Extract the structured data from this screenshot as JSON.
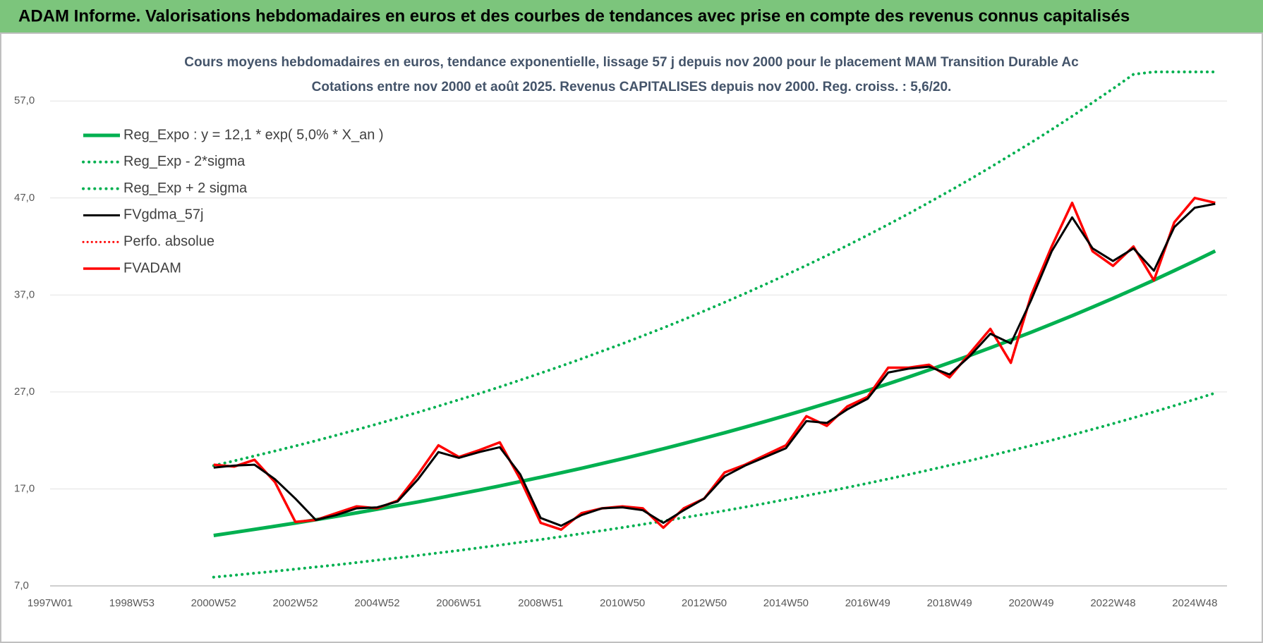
{
  "header": {
    "title": "ADAM Informe. Valorisations hebdomadaires en euros et des courbes de tendances avec prise en compte des revenus connus capitalisés"
  },
  "chart_data": {
    "type": "line",
    "title": "Cours moyens hebdomadaires en euros, tendance exponentielle, lissage 57 j depuis nov 2000  pour le placement MAM Transition Durable Ac",
    "subtitle": "Cotations entre nov 2000 et août 2025.  Revenus CAPITALISES depuis nov 2000. Reg. croiss. : 5,6/20.",
    "categories": [
      "1997W01",
      null,
      null,
      null,
      "1998W53",
      null,
      null,
      null,
      "2000W52",
      null,
      null,
      null,
      "2002W52",
      null,
      null,
      null,
      "2004W52",
      null,
      null,
      null,
      "2006W51",
      null,
      null,
      null,
      "2008W51",
      null,
      null,
      null,
      "2010W50",
      null,
      null,
      null,
      "2012W50",
      null,
      null,
      null,
      "2014W50",
      null,
      null,
      null,
      "2016W49",
      null,
      null,
      null,
      "2018W49",
      null,
      null,
      null,
      "2020W49",
      null,
      null,
      null,
      "2022W48",
      null,
      null,
      null,
      "2024W48",
      null
    ],
    "ylim": [
      7,
      60
    ],
    "yticks": [
      {
        "value": 7,
        "label": "7,0"
      },
      {
        "value": 17,
        "label": "17,0"
      },
      {
        "value": 27,
        "label": "27,0"
      },
      {
        "value": 37,
        "label": "37,0"
      },
      {
        "value": 47,
        "label": "47,0"
      },
      {
        "value": 57,
        "label": "57,0"
      }
    ],
    "grid": true,
    "legend": "upper left",
    "series": [
      {
        "name": "Reg_Expo : y = 12,1 * exp( 5,0% *  X_an )",
        "color": "#00b050",
        "style": "solid",
        "width": 5,
        "values": [
          null,
          null,
          null,
          null,
          null,
          null,
          null,
          null,
          12.2,
          12.51,
          12.83,
          13.15,
          13.48,
          13.82,
          14.17,
          14.53,
          14.9,
          15.28,
          15.66,
          16.06,
          16.47,
          16.88,
          17.31,
          17.75,
          18.2,
          18.66,
          19.13,
          19.62,
          20.11,
          20.62,
          21.14,
          21.68,
          22.23,
          22.79,
          23.37,
          23.96,
          24.57,
          25.19,
          25.83,
          26.48,
          27.15,
          27.84,
          28.54,
          29.27,
          30.01,
          30.77,
          31.55,
          32.35,
          33.16,
          34.0,
          34.86,
          35.75,
          36.65,
          37.58,
          38.53,
          39.51,
          40.51,
          41.53
        ]
      },
      {
        "name": "Reg_Exp - 2*sigma",
        "color": "#00b050",
        "style": "dotted",
        "width": 4,
        "values": [
          null,
          null,
          null,
          null,
          null,
          null,
          null,
          null,
          7.9,
          8.1,
          8.31,
          8.51,
          8.73,
          8.95,
          9.17,
          9.41,
          9.65,
          9.89,
          10.14,
          10.4,
          10.66,
          10.93,
          11.21,
          11.49,
          11.78,
          12.08,
          12.39,
          12.7,
          13.02,
          13.35,
          13.69,
          14.04,
          14.39,
          14.76,
          15.13,
          15.51,
          15.91,
          16.31,
          16.72,
          17.15,
          17.58,
          18.03,
          18.48,
          18.95,
          19.43,
          19.92,
          20.43,
          20.95,
          21.47,
          22.02,
          22.57,
          23.15,
          23.73,
          24.33,
          24.95,
          25.58,
          26.23,
          26.89
        ]
      },
      {
        "name": "Reg_Exp + 2 sigma",
        "color": "#00b050",
        "style": "dotted",
        "width": 4,
        "values": [
          null,
          null,
          null,
          null,
          null,
          null,
          null,
          null,
          19.4,
          19.89,
          20.4,
          20.91,
          21.43,
          21.97,
          22.53,
          23.1,
          23.69,
          24.3,
          24.9,
          25.54,
          26.19,
          26.84,
          27.52,
          28.22,
          28.94,
          29.67,
          30.42,
          31.2,
          31.97,
          32.79,
          33.61,
          34.47,
          35.35,
          36.24,
          37.16,
          38.1,
          39.07,
          40.05,
          41.07,
          42.1,
          43.17,
          44.27,
          45.38,
          46.54,
          47.72,
          48.92,
          50.16,
          51.44,
          52.72,
          54.06,
          55.43,
          56.84,
          58.27,
          59.75,
          60,
          60,
          60,
          60
        ]
      },
      {
        "name": "FVgdma_57j",
        "color": "#000000",
        "style": "solid",
        "width": 3,
        "values": [
          null,
          null,
          null,
          null,
          null,
          null,
          null,
          null,
          19.2,
          19.4,
          19.5,
          18.0,
          16.0,
          13.8,
          14.3,
          15.0,
          15.1,
          15.7,
          18.0,
          20.8,
          20.2,
          20.8,
          21.3,
          18.5,
          14.0,
          13.2,
          14.3,
          15.0,
          15.1,
          14.8,
          13.5,
          14.8,
          16.0,
          18.3,
          19.4,
          20.3,
          21.2,
          24.0,
          23.8,
          25.2,
          26.3,
          29.0,
          29.4,
          29.6,
          28.8,
          30.7,
          33.0,
          32.0,
          36.5,
          41.5,
          45.0,
          41.8,
          40.5,
          41.8,
          39.5,
          44.0,
          46.0,
          46.4
        ]
      },
      {
        "name": "Perfo. absolue",
        "color": "#ff0000",
        "style": "dotted",
        "width": 3,
        "values": [
          null,
          null,
          null,
          null,
          null,
          null,
          null,
          null,
          null,
          null,
          null,
          null,
          null,
          null,
          null,
          null,
          null,
          null,
          null,
          null,
          null,
          null,
          null,
          null,
          null,
          null,
          null,
          null,
          null,
          null,
          null,
          null,
          null,
          null,
          null,
          null,
          null,
          null,
          null,
          null,
          null,
          null,
          null,
          null,
          null,
          null,
          null,
          null,
          null,
          null,
          null,
          null,
          null,
          null,
          null,
          null,
          null,
          null
        ]
      },
      {
        "name": "FVADAM",
        "color": "#ff0000",
        "style": "solid",
        "width": 3.5,
        "values": [
          null,
          null,
          null,
          null,
          null,
          null,
          null,
          null,
          19.5,
          19.3,
          20.0,
          17.7,
          13.6,
          13.8,
          14.5,
          15.2,
          15.0,
          15.8,
          18.5,
          21.5,
          20.3,
          21.0,
          21.8,
          18.0,
          13.5,
          12.8,
          14.5,
          15.0,
          15.2,
          15.0,
          13.0,
          15.0,
          16.0,
          18.7,
          19.5,
          20.5,
          21.5,
          24.5,
          23.5,
          25.5,
          26.5,
          29.5,
          29.5,
          29.8,
          28.5,
          31.0,
          33.5,
          30.0,
          37.0,
          42.0,
          46.5,
          41.5,
          40.0,
          42.0,
          38.5,
          44.5,
          47.0,
          46.5
        ]
      }
    ]
  }
}
